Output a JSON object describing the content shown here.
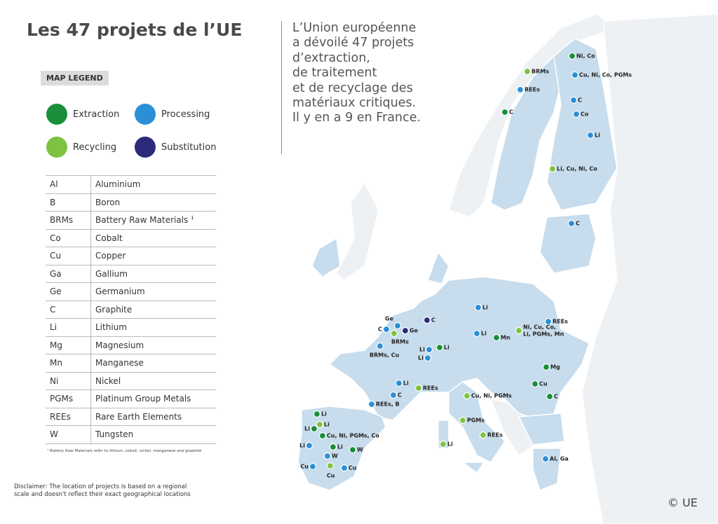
{
  "title": "Les 47 projets de l’UE",
  "intro": [
    "L’Union européenne",
    "a dévoilé 47 projets",
    "d’extraction,",
    "de traitement",
    "et de recyclage des",
    "matériaux critiques.",
    "Il y en a 9 en France."
  ],
  "legend": {
    "title": "MAP LEGEND",
    "items": [
      "Extraction",
      "Processing",
      "Recycling",
      "Substitution"
    ]
  },
  "table": {
    "rows": [
      [
        "Al",
        "Aluminium"
      ],
      [
        "B",
        "Boron"
      ],
      [
        "BRMs",
        "Battery Raw Materials"
      ],
      [
        "Co",
        "Cobalt"
      ],
      [
        "Cu",
        "Copper"
      ],
      [
        "Ga",
        "Gallium"
      ],
      [
        "Ge",
        "Germanium"
      ],
      [
        "C",
        "Graphite"
      ],
      [
        "Li",
        "Lithium"
      ],
      [
        "Mg",
        "Magnesium"
      ],
      [
        "Mn",
        "Manganese"
      ],
      [
        "Ni",
        "Nickel"
      ],
      [
        "PGMs",
        "Platinum Group Metals"
      ],
      [
        "REEs",
        "Rare Earth Elements"
      ],
      [
        "W",
        "Tungsten"
      ]
    ],
    "note_marker": "1"
  },
  "footnote": "¹ Battery Raw Materials refer to lithium, cobalt, nickel, manganese and graphite",
  "disclaimer": "Disclaimer: The location of projects is based on a regional scale and doesn't reflect their exact geographical locations",
  "markers": [
    "Ni, Co",
    "BRMs",
    "Cu, Ni, Co, PGMs",
    "REEs",
    "C",
    "C",
    "Co",
    "Li",
    "Li, Cu, Ni, Co",
    "C",
    "Li",
    "REEs",
    "C",
    "Ge",
    "C",
    "Ge",
    "BRMs",
    [
      "Ni, Cu, Co,",
      "Li, PGMs, Mn"
    ],
    "Li",
    "Mn",
    "Li",
    "Li",
    "Li",
    "BRMs, Cu",
    "Mg",
    "Li",
    "REEs",
    "Cu",
    "C",
    "REEs, B",
    "Cu, Ni, PGMs",
    "C",
    "Li",
    "PGMs",
    "Li",
    "Li",
    "Cu, Ni, PGMs, Co",
    "REEs",
    "Li",
    "Li",
    "W",
    "Li",
    "W",
    "Al, Ga",
    "Cu",
    "Cu",
    "Cu"
  ],
  "copyright": "© UE"
}
